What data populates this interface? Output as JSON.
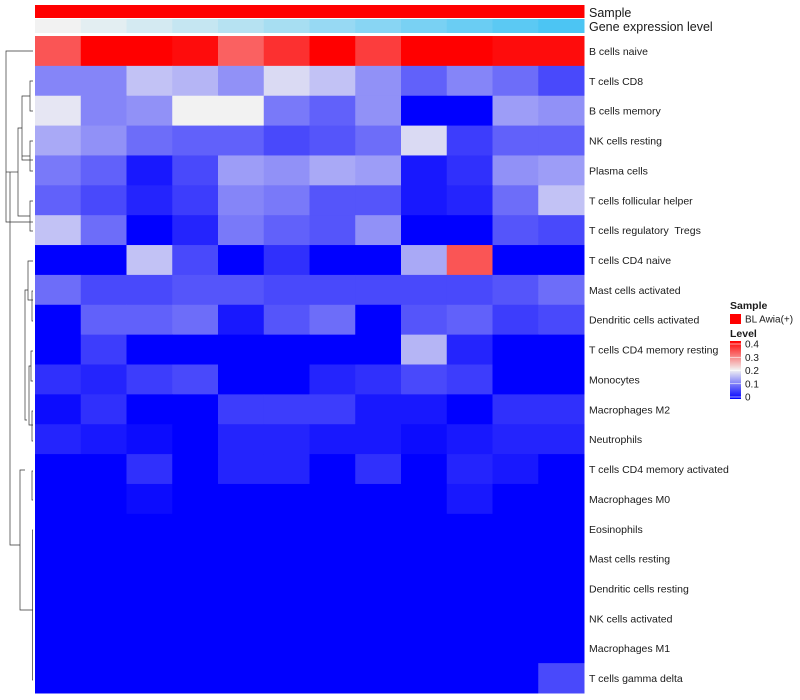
{
  "chart_data": {
    "type": "heatmap",
    "annotations": {
      "sample": {
        "label": "Sample",
        "color": "#ff0000"
      },
      "gene_expression": {
        "label": "Gene expression level",
        "low_color": "#f2f2f2",
        "high_color": "#4cc5f3"
      }
    },
    "rows": [
      "B cells naive",
      "T cells CD8",
      "B cells memory",
      "NK cells resting",
      "Plasma cells",
      "T cells follicular helper",
      "T cells regulatory  Tregs",
      "T cells CD4 naive",
      "Mast cells activated",
      "Dendritic cells activated",
      "T cells CD4 memory resting",
      "Monocytes",
      "Macrophages M2",
      "Neutrophils",
      "T cells CD4 memory activated",
      "Macrophages M0",
      "Eosinophils",
      "Mast cells resting",
      "Dendritic cells resting",
      "NK cells activated",
      "Macrophages M1",
      "T cells gamma delta"
    ],
    "values": [
      [
        0.33,
        0.42,
        0.42,
        0.39,
        0.32,
        0.36,
        0.41,
        0.35,
        0.42,
        0.41,
        0.39,
        0.39
      ],
      [
        0.11,
        0.11,
        0.16,
        0.15,
        0.12,
        0.18,
        0.16,
        0.12,
        0.08,
        0.11,
        0.09,
        0.06
      ],
      [
        0.19,
        0.11,
        0.12,
        0.2,
        0.2,
        0.1,
        0.08,
        0.12,
        0.0,
        0.0,
        0.13,
        0.12
      ],
      [
        0.14,
        0.12,
        0.09,
        0.08,
        0.08,
        0.06,
        0.07,
        0.09,
        0.18,
        0.05,
        0.08,
        0.08
      ],
      [
        0.1,
        0.08,
        0.02,
        0.06,
        0.13,
        0.12,
        0.14,
        0.13,
        0.02,
        0.04,
        0.12,
        0.13
      ],
      [
        0.08,
        0.06,
        0.03,
        0.05,
        0.11,
        0.1,
        0.07,
        0.07,
        0.02,
        0.03,
        0.09,
        0.16
      ],
      [
        0.16,
        0.09,
        0.0,
        0.03,
        0.1,
        0.08,
        0.07,
        0.12,
        0.0,
        0.0,
        0.07,
        0.06
      ],
      [
        0.0,
        0.0,
        0.16,
        0.06,
        0.0,
        0.04,
        0.0,
        0.0,
        0.14,
        0.33,
        0.0,
        0.0
      ],
      [
        0.09,
        0.06,
        0.06,
        0.07,
        0.07,
        0.06,
        0.06,
        0.06,
        0.06,
        0.06,
        0.07,
        0.09
      ],
      [
        0.0,
        0.08,
        0.08,
        0.09,
        0.02,
        0.07,
        0.09,
        0.0,
        0.07,
        0.08,
        0.05,
        0.06
      ],
      [
        0.0,
        0.05,
        0.0,
        0.0,
        0.0,
        0.0,
        0.0,
        0.0,
        0.15,
        0.03,
        0.0,
        0.0
      ],
      [
        0.04,
        0.03,
        0.05,
        0.06,
        0.0,
        0.0,
        0.03,
        0.04,
        0.06,
        0.05,
        0.0,
        0.0
      ],
      [
        0.01,
        0.04,
        0.0,
        0.0,
        0.05,
        0.05,
        0.05,
        0.02,
        0.02,
        0.0,
        0.04,
        0.04
      ],
      [
        0.03,
        0.02,
        0.01,
        0.0,
        0.03,
        0.03,
        0.02,
        0.02,
        0.01,
        0.02,
        0.03,
        0.03
      ],
      [
        0.0,
        0.0,
        0.04,
        0.0,
        0.03,
        0.03,
        0.0,
        0.04,
        0.0,
        0.03,
        0.02,
        0.0
      ],
      [
        0.0,
        0.0,
        0.01,
        0.0,
        0.0,
        0.0,
        0.0,
        0.0,
        0.0,
        0.02,
        0.0,
        0.0
      ],
      [
        0.0,
        0.0,
        0.0,
        0.0,
        0.0,
        0.0,
        0.0,
        0.0,
        0.0,
        0.0,
        0.0,
        0.0
      ],
      [
        0.0,
        0.0,
        0.0,
        0.0,
        0.0,
        0.0,
        0.0,
        0.0,
        0.0,
        0.0,
        0.0,
        0.0
      ],
      [
        0.0,
        0.0,
        0.0,
        0.0,
        0.0,
        0.0,
        0.0,
        0.0,
        0.0,
        0.0,
        0.0,
        0.0
      ],
      [
        0.0,
        0.0,
        0.0,
        0.0,
        0.0,
        0.0,
        0.0,
        0.0,
        0.0,
        0.0,
        0.0,
        0.0
      ],
      [
        0.0,
        0.0,
        0.0,
        0.0,
        0.0,
        0.0,
        0.0,
        0.0,
        0.0,
        0.0,
        0.0,
        0.0
      ],
      [
        0.0,
        0.0,
        0.0,
        0.0,
        0.0,
        0.0,
        0.0,
        0.0,
        0.0,
        0.0,
        0.0,
        0.06
      ]
    ],
    "color_scale": {
      "domain": [
        0,
        0.2,
        0.4
      ],
      "colors": [
        "#0000ff",
        "#f2f2f2",
        "#ff0000"
      ]
    },
    "legend": {
      "sample_title": "Sample",
      "sample_entry": "BL Awia(+)",
      "sample_color": "#ff0000",
      "level_title": "Level",
      "level_ticks": [
        "0.4",
        "0.3",
        "0.2",
        "0.1",
        "0"
      ],
      "placement": "right"
    }
  }
}
